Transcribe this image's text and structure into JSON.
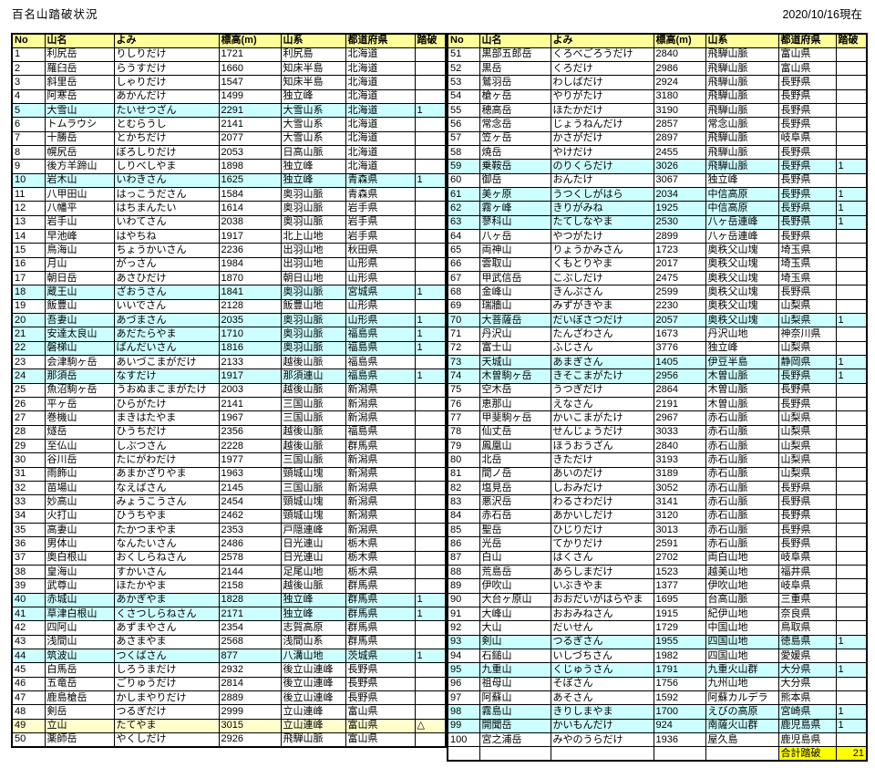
{
  "page": {
    "title": "百名山踏破状況",
    "as_of": "2020/10/16現在"
  },
  "table": {
    "columns": [
      "No",
      "山名",
      "よみ",
      "標高(m)",
      "山系",
      "都道府県",
      "踏破"
    ],
    "column_keys": [
      "no",
      "name",
      "yomi",
      "elevation",
      "range",
      "prefecture",
      "status"
    ],
    "status_marks": {
      "climbed": "1",
      "partial": "△"
    },
    "total": {
      "label": "合計踏破",
      "value": "21"
    },
    "colors": {
      "header_bg": "#ffff99",
      "climbed_row_bg": "#ccffff",
      "partial_row_bg": "#ffffcc",
      "total_bg": "#ffff00",
      "grid": "#000000"
    },
    "rows": [
      [
        1,
        "利尻岳",
        "りしりだけ",
        1721,
        "利尻島",
        "北海道",
        ""
      ],
      [
        2,
        "羅臼岳",
        "らうすだけ",
        1660,
        "知床半島",
        "北海道",
        ""
      ],
      [
        3,
        "斜里岳",
        "しゃりだけ",
        1547,
        "知床半島",
        "北海道",
        ""
      ],
      [
        4,
        "阿寒岳",
        "あかんだけ",
        1499,
        "独立峰",
        "北海道",
        ""
      ],
      [
        5,
        "大雪山",
        "たいせつざん",
        2291,
        "大雪山系",
        "北海道",
        "1"
      ],
      [
        6,
        "トムラウシ",
        "とむらうし",
        2141,
        "大雪山系",
        "北海道",
        ""
      ],
      [
        7,
        "十勝岳",
        "とかちだけ",
        2077,
        "大雪山系",
        "北海道",
        ""
      ],
      [
        8,
        "幌尻岳",
        "ぼろしりだけ",
        2053,
        "日高山脈",
        "北海道",
        ""
      ],
      [
        9,
        "後方羊蹄山",
        "しりべしやま",
        1898,
        "独立峰",
        "北海道",
        ""
      ],
      [
        10,
        "岩木山",
        "いわきさん",
        1625,
        "独立峰",
        "青森県",
        "1"
      ],
      [
        11,
        "八甲田山",
        "はっこうださん",
        1584,
        "奥羽山脈",
        "青森県",
        ""
      ],
      [
        12,
        "八幡平",
        "はちまんたい",
        1614,
        "奥羽山脈",
        "岩手県",
        ""
      ],
      [
        13,
        "岩手山",
        "いわてさん",
        2038,
        "奥羽山脈",
        "岩手県",
        ""
      ],
      [
        14,
        "早池峰",
        "はやちね",
        1917,
        "北上山地",
        "岩手県",
        ""
      ],
      [
        15,
        "鳥海山",
        "ちょうかいさん",
        2236,
        "出羽山地",
        "秋田県",
        ""
      ],
      [
        16,
        "月山",
        "がっさん",
        1984,
        "出羽山地",
        "山形県",
        ""
      ],
      [
        17,
        "朝日岳",
        "あさひだけ",
        1870,
        "朝日山地",
        "山形県",
        ""
      ],
      [
        18,
        "蔵王山",
        "ざおうさん",
        1841,
        "奥羽山脈",
        "宮城県",
        "1"
      ],
      [
        19,
        "飯豊山",
        "いいでさん",
        2128,
        "飯豊山地",
        "山形県",
        ""
      ],
      [
        20,
        "吾妻山",
        "あづまさん",
        2035,
        "奥羽山脈",
        "山形県",
        "1"
      ],
      [
        21,
        "安達太良山",
        "あだたらやま",
        1710,
        "奥羽山脈",
        "福島県",
        "1"
      ],
      [
        22,
        "磐梯山",
        "ばんだいさん",
        1816,
        "奥羽山脈",
        "福島県",
        "1"
      ],
      [
        23,
        "会津駒ヶ岳",
        "あいづこまがだけ",
        2133,
        "越後山脈",
        "福島県",
        ""
      ],
      [
        24,
        "那須岳",
        "なすだけ",
        1917,
        "那須連山",
        "福島県",
        "1"
      ],
      [
        25,
        "魚沼駒ヶ岳",
        "うおぬまこまがたけ",
        2003,
        "越後山脈",
        "新潟県",
        ""
      ],
      [
        26,
        "平ヶ岳",
        "ひらがたけ",
        2141,
        "三国山脈",
        "新潟県",
        ""
      ],
      [
        27,
        "巻機山",
        "まきはたやま",
        1967,
        "三国山脈",
        "新潟県",
        ""
      ],
      [
        28,
        "燧岳",
        "ひうちだけ",
        2356,
        "越後山脈",
        "福島県",
        ""
      ],
      [
        29,
        "至仏山",
        "しぶつさん",
        2228,
        "越後山脈",
        "群馬県",
        ""
      ],
      [
        30,
        "谷川岳",
        "たにがわだけ",
        1977,
        "三国山脈",
        "新潟県",
        ""
      ],
      [
        31,
        "雨飾山",
        "あまかざりやま",
        1963,
        "頸城山塊",
        "新潟県",
        ""
      ],
      [
        32,
        "苗場山",
        "なえばさん",
        2145,
        "三国山脈",
        "新潟県",
        ""
      ],
      [
        33,
        "妙高山",
        "みょうこうさん",
        2454,
        "頸城山塊",
        "新潟県",
        ""
      ],
      [
        34,
        "火打山",
        "ひうちやま",
        2462,
        "頸城山塊",
        "新潟県",
        ""
      ],
      [
        35,
        "高妻山",
        "たかつまやま",
        2353,
        "戸隠連峰",
        "新潟県",
        ""
      ],
      [
        36,
        "男体山",
        "なんたいさん",
        2486,
        "日光連山",
        "栃木県",
        ""
      ],
      [
        37,
        "奥白根山",
        "おくしらねさん",
        2578,
        "日光連山",
        "栃木県",
        ""
      ],
      [
        38,
        "皇海山",
        "すかいさん",
        2144,
        "足尾山地",
        "栃木県",
        ""
      ],
      [
        39,
        "武尊山",
        "ほたかやま",
        2158,
        "越後山脈",
        "群馬県",
        ""
      ],
      [
        40,
        "赤城山",
        "あかぎやま",
        1828,
        "独立峰",
        "群馬県",
        "1"
      ],
      [
        41,
        "草津白根山",
        "くさつしらねさん",
        2171,
        "独立峰",
        "群馬県",
        "1"
      ],
      [
        42,
        "四阿山",
        "あずまやさん",
        2354,
        "志賀高原",
        "群馬県",
        ""
      ],
      [
        43,
        "浅間山",
        "あさまやま",
        2568,
        "浅間山系",
        "群馬県",
        ""
      ],
      [
        44,
        "筑波山",
        "つくばさん",
        877,
        "八溝山地",
        "茨城県",
        "1"
      ],
      [
        45,
        "白馬岳",
        "しろうまだけ",
        2932,
        "後立山連峰",
        "長野県",
        ""
      ],
      [
        46,
        "五竜岳",
        "ごりゅうだけ",
        2814,
        "後立山連峰",
        "長野県",
        ""
      ],
      [
        47,
        "鹿島槍岳",
        "かしまやりだけ",
        2889,
        "後立山連峰",
        "長野県",
        ""
      ],
      [
        48,
        "剣岳",
        "つるぎだけ",
        2999,
        "立山連峰",
        "富山県",
        ""
      ],
      [
        49,
        "立山",
        "たてやま",
        3015,
        "立山連峰",
        "富山県",
        "△"
      ],
      [
        50,
        "薬師岳",
        "やくしだけ",
        2926,
        "飛騨山脈",
        "富山県",
        ""
      ],
      [
        51,
        "黒部五郎岳",
        "くろべごろうだけ",
        2840,
        "飛騨山脈",
        "富山県",
        ""
      ],
      [
        52,
        "黒岳",
        "くろだけ",
        2986,
        "飛騨山脈",
        "富山県",
        ""
      ],
      [
        53,
        "鷲羽岳",
        "わしばだけ",
        2924,
        "飛騨山脈",
        "長野県",
        ""
      ],
      [
        54,
        "槍ヶ岳",
        "やりがたけ",
        3180,
        "飛騨山脈",
        "長野県",
        ""
      ],
      [
        55,
        "穂高岳",
        "ほたかだけ",
        3190,
        "飛騨山脈",
        "長野県",
        ""
      ],
      [
        56,
        "常念岳",
        "じょうねんだけ",
        2857,
        "常念山脈",
        "長野県",
        ""
      ],
      [
        57,
        "笠ヶ岳",
        "かさがだけ",
        2897,
        "飛騨山脈",
        "岐阜県",
        ""
      ],
      [
        58,
        "焼岳",
        "やけだけ",
        2455,
        "飛騨山脈",
        "長野県",
        ""
      ],
      [
        59,
        "乗鞍岳",
        "のりくらだけ",
        3026,
        "飛騨山脈",
        "長野県",
        "1"
      ],
      [
        60,
        "御岳",
        "おんたけ",
        3067,
        "独立峰",
        "長野県",
        ""
      ],
      [
        61,
        "美ヶ原",
        "うつくしがはら",
        2034,
        "中信高原",
        "長野県",
        "1"
      ],
      [
        62,
        "霧ヶ峰",
        "きりがみね",
        1925,
        "中信高原",
        "長野県",
        "1"
      ],
      [
        63,
        "蓼科山",
        "たてしなやま",
        2530,
        "八ヶ岳連峰",
        "長野県",
        "1"
      ],
      [
        64,
        "八ヶ岳",
        "やつがたけ",
        2899,
        "八ヶ岳連峰",
        "長野県",
        ""
      ],
      [
        65,
        "両神山",
        "りょうかみさん",
        1723,
        "奥秩父山塊",
        "埼玉県",
        ""
      ],
      [
        66,
        "雲取山",
        "くもとりやま",
        2017,
        "奥秩父山塊",
        "埼玉県",
        ""
      ],
      [
        67,
        "甲武信岳",
        "こぶしだけ",
        2475,
        "奥秩父山塊",
        "埼玉県",
        ""
      ],
      [
        68,
        "金峰山",
        "きんぷさん",
        2599,
        "奥秩父山塊",
        "長野県",
        ""
      ],
      [
        69,
        "瑞牆山",
        "みずがきやま",
        2230,
        "奥秩父山塊",
        "山梨県",
        ""
      ],
      [
        70,
        "大菩薩岳",
        "だいぼさつだけ",
        2057,
        "奥秩父山塊",
        "山梨県",
        "1"
      ],
      [
        71,
        "丹沢山",
        "たんざわさん",
        1673,
        "丹沢山地",
        "神奈川県",
        ""
      ],
      [
        72,
        "富士山",
        "ふじさん",
        3776,
        "独立峰",
        "山梨県",
        ""
      ],
      [
        73,
        "天城山",
        "あまぎさん",
        1405,
        "伊豆半島",
        "静岡県",
        "1"
      ],
      [
        74,
        "木曽駒ヶ岳",
        "きそこまがたけ",
        2956,
        "木曽山脈",
        "長野県",
        "1"
      ],
      [
        75,
        "空木岳",
        "うつぎだけ",
        2864,
        "木曽山脈",
        "長野県",
        ""
      ],
      [
        76,
        "恵那山",
        "えなさん",
        2191,
        "木曽山脈",
        "長野県",
        ""
      ],
      [
        77,
        "甲斐駒ヶ岳",
        "かいこまがたけ",
        2967,
        "赤石山脈",
        "山梨県",
        ""
      ],
      [
        78,
        "仙丈岳",
        "せんじょうだけ",
        3033,
        "赤石山脈",
        "山梨県",
        ""
      ],
      [
        79,
        "鳳凰山",
        "ほうおうざん",
        2840,
        "赤石山脈",
        "山梨県",
        ""
      ],
      [
        80,
        "北岳",
        "きただけ",
        3193,
        "赤石山脈",
        "山梨県",
        ""
      ],
      [
        81,
        "間ノ岳",
        "あいのだけ",
        3189,
        "赤石山脈",
        "山梨県",
        ""
      ],
      [
        82,
        "塩見岳",
        "しおみだけ",
        3052,
        "赤石山脈",
        "長野県",
        ""
      ],
      [
        83,
        "悪沢岳",
        "わるさわだけ",
        3141,
        "赤石山脈",
        "長野県",
        ""
      ],
      [
        84,
        "赤石岳",
        "あかいしだけ",
        3120,
        "赤石山脈",
        "長野県",
        ""
      ],
      [
        85,
        "聖岳",
        "ひじりだけ",
        3013,
        "赤石山脈",
        "長野県",
        ""
      ],
      [
        86,
        "光岳",
        "てかりだけ",
        2591,
        "赤石山脈",
        "長野県",
        ""
      ],
      [
        87,
        "白山",
        "はくさん",
        2702,
        "両白山地",
        "岐阜県",
        ""
      ],
      [
        88,
        "荒島岳",
        "あらしまだけ",
        1523,
        "越美山地",
        "福井県",
        ""
      ],
      [
        89,
        "伊吹山",
        "いぶきやま",
        1377,
        "伊吹山地",
        "岐阜県",
        ""
      ],
      [
        90,
        "大台ヶ原山",
        "おおだいがはらやま",
        1695,
        "台高山脈",
        "三重県",
        ""
      ],
      [
        91,
        "大峰山",
        "おおみねさん",
        1915,
        "紀伊山地",
        "奈良県",
        ""
      ],
      [
        92,
        "大山",
        "だいせん",
        1729,
        "中国山地",
        "鳥取県",
        ""
      ],
      [
        93,
        "剣山",
        "つるぎさん",
        1955,
        "四国山地",
        "徳島県",
        "1"
      ],
      [
        94,
        "石鎚山",
        "いしづちさん",
        1982,
        "四国山地",
        "愛媛県",
        ""
      ],
      [
        95,
        "九重山",
        "くじゅうさん",
        1791,
        "九重火山群",
        "大分県",
        "1"
      ],
      [
        96,
        "祖母山",
        "そぼさん",
        1756,
        "九州山地",
        "大分県",
        ""
      ],
      [
        97,
        "阿蘇山",
        "あそさん",
        1592,
        "阿蘇カルデラ",
        "熊本県",
        ""
      ],
      [
        98,
        "霧島山",
        "きりしまやま",
        1700,
        "えびの高原",
        "宮崎県",
        "1"
      ],
      [
        99,
        "開聞岳",
        "かいもんだけ",
        924,
        "南薩火山群",
        "鹿児島県",
        "1"
      ],
      [
        100,
        "宮之浦岳",
        "みやのうらだけ",
        1936,
        "屋久島",
        "鹿児島県",
        ""
      ]
    ]
  }
}
